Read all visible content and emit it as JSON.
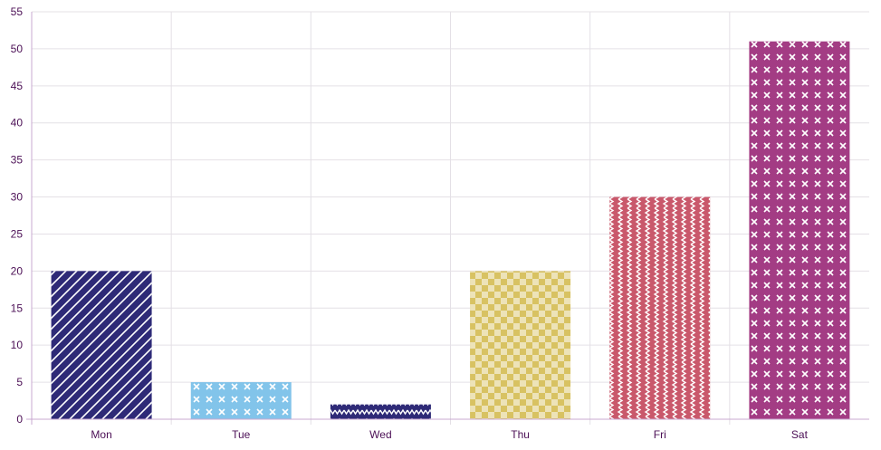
{
  "chart_data": {
    "type": "bar",
    "categories": [
      "Mon",
      "Tue",
      "Wed",
      "Thu",
      "Fri",
      "Sat"
    ],
    "values": [
      20,
      5,
      2,
      20,
      30,
      51
    ],
    "ylim": [
      0,
      55
    ],
    "y_ticks": [
      0,
      5,
      10,
      15,
      20,
      25,
      30,
      35,
      40,
      45,
      50,
      55
    ],
    "grid": true,
    "title": "",
    "xlabel": "",
    "ylabel": "",
    "bar_styles": [
      {
        "color": "#2e2a77",
        "pattern": "diagonal-stripes-icon"
      },
      {
        "color": "#82c4ea",
        "pattern": "cross-icon"
      },
      {
        "color": "#2e2a77",
        "pattern": "zigzag-icon"
      },
      {
        "color": "#d8c262",
        "pattern": "checker-icon"
      },
      {
        "color": "#c9586b",
        "pattern": "zigzag-vertical-icon"
      },
      {
        "color": "#a33c84",
        "pattern": "cross-icon"
      }
    ],
    "colors": {
      "grid": "#e4e0e6",
      "axis": "#c9a9d0",
      "tick_text": "#4b0f55"
    }
  }
}
